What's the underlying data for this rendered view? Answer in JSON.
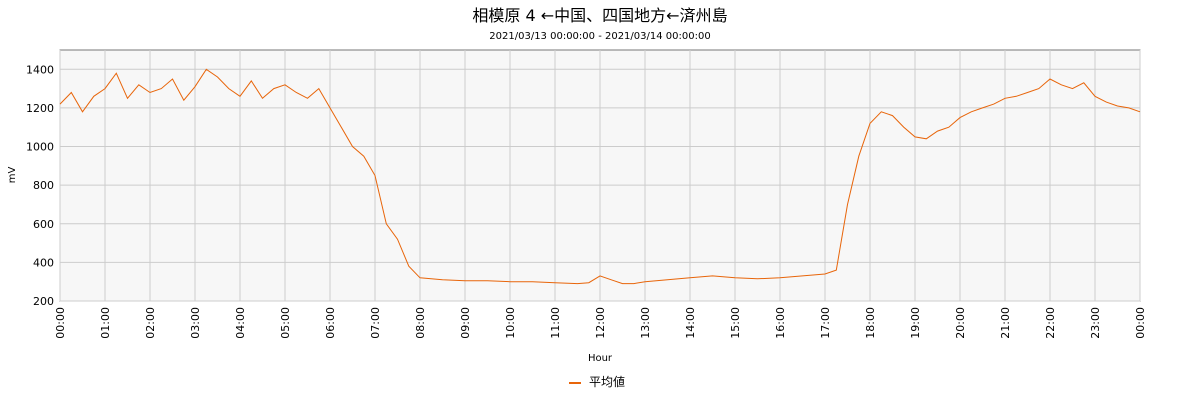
{
  "chart_data": {
    "type": "line",
    "title": "相模原  4  ←中国、四国地方←済州島",
    "subtitle": "2021/03/13 00:00:00 - 2021/03/14 00:00:00",
    "xlabel": "Hour",
    "ylabel": "mV",
    "ylim": [
      200,
      1500
    ],
    "yticks": [
      200,
      400,
      600,
      800,
      1000,
      1200,
      1400
    ],
    "xlim": [
      0,
      24
    ],
    "xticks": [
      "00:00",
      "01:00",
      "02:00",
      "03:00",
      "04:00",
      "05:00",
      "06:00",
      "07:00",
      "08:00",
      "09:00",
      "10:00",
      "11:00",
      "12:00",
      "13:00",
      "14:00",
      "15:00",
      "16:00",
      "17:00",
      "18:00",
      "19:00",
      "20:00",
      "21:00",
      "22:00",
      "23:00",
      "00:00"
    ],
    "grid": true,
    "legend_position": "bottom",
    "series": [
      {
        "name": "平均値",
        "color": "#e8650a",
        "x": [
          0,
          0.25,
          0.5,
          0.75,
          1,
          1.25,
          1.5,
          1.75,
          2,
          2.25,
          2.5,
          2.75,
          3,
          3.25,
          3.5,
          3.75,
          4,
          4.25,
          4.5,
          4.75,
          5,
          5.25,
          5.5,
          5.75,
          6,
          6.25,
          6.5,
          6.75,
          7,
          7.25,
          7.5,
          7.75,
          8,
          8.5,
          9,
          9.5,
          10,
          10.5,
          11,
          11.5,
          11.75,
          12,
          12.25,
          12.5,
          12.75,
          13,
          13.5,
          14,
          14.5,
          15,
          15.5,
          16,
          16.5,
          17,
          17.25,
          17.5,
          17.75,
          18,
          18.25,
          18.5,
          18.75,
          19,
          19.25,
          19.5,
          19.75,
          20,
          20.25,
          20.5,
          20.75,
          21,
          21.25,
          21.5,
          21.75,
          22,
          22.25,
          22.5,
          22.75,
          23,
          23.25,
          23.5,
          23.75,
          24
        ],
        "y": [
          1220,
          1280,
          1180,
          1260,
          1300,
          1380,
          1250,
          1320,
          1280,
          1300,
          1350,
          1240,
          1310,
          1400,
          1360,
          1300,
          1260,
          1340,
          1250,
          1300,
          1320,
          1280,
          1250,
          1300,
          1200,
          1100,
          1000,
          950,
          850,
          600,
          520,
          380,
          320,
          310,
          305,
          305,
          300,
          300,
          295,
          290,
          295,
          330,
          310,
          290,
          290,
          300,
          310,
          320,
          330,
          320,
          315,
          320,
          330,
          340,
          360,
          700,
          950,
          1120,
          1180,
          1160,
          1100,
          1050,
          1040,
          1080,
          1100,
          1150,
          1180,
          1200,
          1220,
          1250,
          1260,
          1280,
          1300,
          1350,
          1320,
          1300,
          1330,
          1260,
          1230,
          1210,
          1200,
          1180
        ]
      }
    ]
  }
}
